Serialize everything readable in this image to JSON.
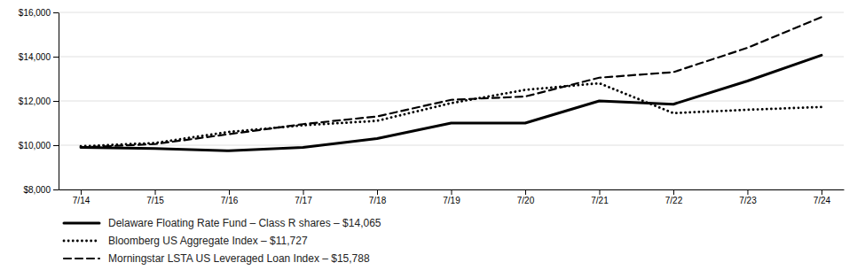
{
  "chart_data": {
    "type": "line",
    "categories": [
      "7/14",
      "7/15",
      "7/16",
      "7/17",
      "7/18",
      "7/19",
      "7/20",
      "7/21",
      "7/22",
      "7/23",
      "7/24"
    ],
    "series": [
      {
        "name": "Delaware Floating Rate Fund – Class R shares – $14,065",
        "values": [
          9900,
          9850,
          9750,
          9900,
          10300,
          11000,
          11000,
          12000,
          11850,
          12900,
          14065
        ],
        "color": "#000000",
        "line_style": "solid"
      },
      {
        "name": "Bloomberg US Aggregate Index – $11,727",
        "values": [
          9950,
          10100,
          10600,
          10900,
          11100,
          11900,
          12500,
          12800,
          11450,
          11600,
          11727
        ],
        "color": "#000000",
        "line_style": "dotted"
      },
      {
        "name": "Morningstar LSTA US Leveraged Loan Index – $15,788",
        "values": [
          9900,
          10050,
          10500,
          10950,
          11300,
          12050,
          12200,
          13050,
          13300,
          14400,
          15788
        ],
        "color": "#000000",
        "line_style": "dashed"
      }
    ],
    "ylim": [
      8000,
      16000
    ],
    "yticks": [
      {
        "value": 8000,
        "label": "$8,000"
      },
      {
        "value": 10000,
        "label": "$10,000"
      },
      {
        "value": 12000,
        "label": "$12,000"
      },
      {
        "value": 14000,
        "label": "$14,000"
      },
      {
        "value": 16000,
        "label": "$16,000"
      }
    ],
    "grid": true,
    "legend": "bottom"
  }
}
